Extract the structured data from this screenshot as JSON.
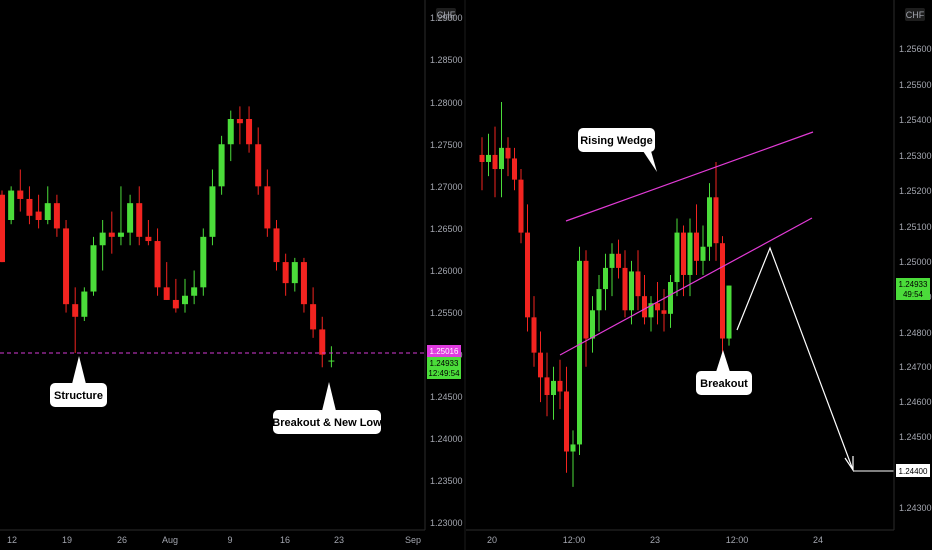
{
  "colors": {
    "background": "#000000",
    "bull": "#4bdc3a",
    "bear": "#f22420",
    "wedge": "#e23bd6",
    "support": "#d33ad3",
    "arrow": "#ffffff",
    "price_tag": "#4bdc3a",
    "level_tag": "#e03be0",
    "axis_text": "#a3a6af"
  },
  "chart_data": [
    {
      "type": "candlestick",
      "symbol_currency": "CHF",
      "ylim": [
        1.2295,
        1.2905
      ],
      "y_ticks": [
        "1.29000",
        "1.28500",
        "1.28000",
        "1.27500",
        "1.27000",
        "1.26500",
        "1.26000",
        "1.25500",
        "1.25000",
        "1.24500",
        "1.24000",
        "1.23500",
        "1.23000"
      ],
      "x_ticks": [
        "12",
        "19",
        "26",
        "Aug",
        "9",
        "16",
        "23",
        "Sep"
      ],
      "support_level": 1.2502,
      "support_label": "1.25016",
      "current_price": "1.24933",
      "countdown": "12:49:54",
      "annotations": [
        "Structure",
        "Breakout & New Low"
      ],
      "candles": [
        [
          1.269,
          1.2695,
          1.261,
          1.261
        ],
        [
          1.266,
          1.27,
          1.2655,
          1.2695
        ],
        [
          1.2695,
          1.272,
          1.267,
          1.2685
        ],
        [
          1.2685,
          1.27,
          1.2655,
          1.2665
        ],
        [
          1.267,
          1.269,
          1.265,
          1.266
        ],
        [
          1.266,
          1.27,
          1.2655,
          1.268
        ],
        [
          1.268,
          1.269,
          1.264,
          1.265
        ],
        [
          1.265,
          1.266,
          1.255,
          1.256
        ],
        [
          1.256,
          1.258,
          1.2502,
          1.2545
        ],
        [
          1.2545,
          1.258,
          1.254,
          1.2575
        ],
        [
          1.2575,
          1.264,
          1.257,
          1.263
        ],
        [
          1.263,
          1.266,
          1.26,
          1.2645
        ],
        [
          1.2645,
          1.267,
          1.262,
          1.264
        ],
        [
          1.264,
          1.27,
          1.263,
          1.2645
        ],
        [
          1.2645,
          1.269,
          1.263,
          1.268
        ],
        [
          1.268,
          1.27,
          1.263,
          1.264
        ],
        [
          1.264,
          1.266,
          1.263,
          1.2635
        ],
        [
          1.2635,
          1.265,
          1.257,
          1.258
        ],
        [
          1.258,
          1.261,
          1.2565,
          1.2565
        ],
        [
          1.2565,
          1.259,
          1.255,
          1.2555
        ],
        [
          1.256,
          1.259,
          1.255,
          1.257
        ],
        [
          1.257,
          1.26,
          1.256,
          1.258
        ],
        [
          1.258,
          1.265,
          1.257,
          1.264
        ],
        [
          1.264,
          1.272,
          1.263,
          1.27
        ],
        [
          1.27,
          1.276,
          1.269,
          1.275
        ],
        [
          1.275,
          1.279,
          1.273,
          1.278
        ],
        [
          1.278,
          1.2795,
          1.275,
          1.2775
        ],
        [
          1.278,
          1.2795,
          1.274,
          1.275
        ],
        [
          1.275,
          1.277,
          1.269,
          1.27
        ],
        [
          1.27,
          1.272,
          1.264,
          1.265
        ],
        [
          1.265,
          1.266,
          1.26,
          1.261
        ],
        [
          1.261,
          1.262,
          1.257,
          1.2585
        ],
        [
          1.2585,
          1.2615,
          1.2575,
          1.261
        ],
        [
          1.261,
          1.2615,
          1.255,
          1.256
        ],
        [
          1.256,
          1.258,
          1.252,
          1.253
        ],
        [
          1.253,
          1.2545,
          1.2485,
          1.25
        ],
        [
          1.2493,
          1.251,
          1.2485,
          1.2493
        ]
      ],
      "candle_format": "open, high, low, close"
    },
    {
      "type": "candlestick",
      "symbol_currency": "CHF",
      "ylim": [
        1.242,
        1.2575
      ],
      "y_ticks": [
        "1.25600",
        "1.25500",
        "1.25400",
        "1.25300",
        "1.25200",
        "1.25100",
        "1.25000",
        "1.24900",
        "1.24800",
        "1.24700",
        "1.24600",
        "1.24500",
        "1.24300"
      ],
      "x_ticks": [
        "20",
        "12:00",
        "23",
        "12:00",
        "24"
      ],
      "current_price": "1.24933",
      "countdown": "49:54",
      "target_label": "1.24400",
      "target_level": 1.244,
      "annotations": [
        "Rising Wedge",
        "Breakout"
      ],
      "candles": [
        [
          1.253,
          1.2535,
          1.252,
          1.2528
        ],
        [
          1.2528,
          1.2536,
          1.2524,
          1.253
        ],
        [
          1.253,
          1.2538,
          1.2518,
          1.2526
        ],
        [
          1.2526,
          1.2545,
          1.2518,
          1.2532
        ],
        [
          1.2532,
          1.2535,
          1.2524,
          1.2529
        ],
        [
          1.2529,
          1.2532,
          1.252,
          1.2523
        ],
        [
          1.2523,
          1.2526,
          1.2505,
          1.2508
        ],
        [
          1.2508,
          1.2516,
          1.248,
          1.2484
        ],
        [
          1.2484,
          1.249,
          1.247,
          1.2474
        ],
        [
          1.2474,
          1.248,
          1.246,
          1.2467
        ],
        [
          1.2467,
          1.2474,
          1.2456,
          1.2462
        ],
        [
          1.2462,
          1.247,
          1.2455,
          1.2466
        ],
        [
          1.2466,
          1.2472,
          1.2458,
          1.2463
        ],
        [
          1.2463,
          1.247,
          1.244,
          1.2446
        ],
        [
          1.2446,
          1.2452,
          1.2436,
          1.2448
        ],
        [
          1.2448,
          1.2504,
          1.2445,
          1.25
        ],
        [
          1.25,
          1.2503,
          1.247,
          1.2478
        ],
        [
          1.2478,
          1.249,
          1.2474,
          1.2486
        ],
        [
          1.2486,
          1.2496,
          1.248,
          1.2492
        ],
        [
          1.2492,
          1.2502,
          1.2486,
          1.2498
        ],
        [
          1.2498,
          1.2505,
          1.249,
          1.2502
        ],
        [
          1.2502,
          1.2506,
          1.2495,
          1.2498
        ],
        [
          1.2498,
          1.2503,
          1.2484,
          1.2486
        ],
        [
          1.2486,
          1.25,
          1.2482,
          1.2497
        ],
        [
          1.2497,
          1.2503,
          1.2486,
          1.249
        ],
        [
          1.249,
          1.2496,
          1.2482,
          1.2484
        ],
        [
          1.2484,
          1.249,
          1.248,
          1.2488
        ],
        [
          1.2488,
          1.2494,
          1.2482,
          1.2486
        ],
        [
          1.2486,
          1.2492,
          1.248,
          1.2485
        ],
        [
          1.2485,
          1.2496,
          1.2481,
          1.2494
        ],
        [
          1.2494,
          1.2512,
          1.249,
          1.2508
        ],
        [
          1.2508,
          1.251,
          1.249,
          1.2496
        ],
        [
          1.2496,
          1.2512,
          1.249,
          1.2508
        ],
        [
          1.2508,
          1.2516,
          1.2496,
          1.25
        ],
        [
          1.25,
          1.251,
          1.2496,
          1.2504
        ],
        [
          1.2504,
          1.2522,
          1.25,
          1.2518
        ],
        [
          1.2518,
          1.2528,
          1.25,
          1.2505
        ],
        [
          1.2505,
          1.2507,
          1.2474,
          1.2478
        ],
        [
          1.2478,
          1.2493,
          1.2476,
          1.2493
        ]
      ],
      "candle_format": "open, high, low, close"
    }
  ]
}
